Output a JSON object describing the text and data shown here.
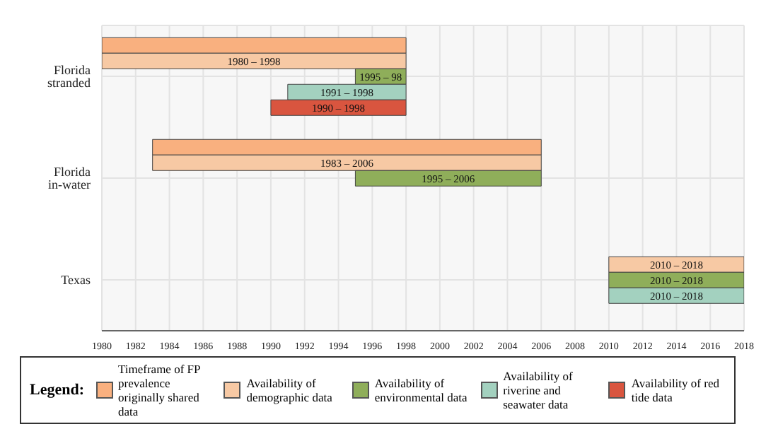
{
  "chart_data": {
    "type": "bar",
    "orientation": "horizontal",
    "categories": [
      "Florida stranded",
      "Florida in-water",
      "Texas"
    ],
    "xlim": [
      1980,
      2018
    ],
    "xticks": [
      1980,
      1982,
      1984,
      1986,
      1988,
      1990,
      1992,
      1994,
      1996,
      1998,
      2000,
      2002,
      2004,
      2006,
      2008,
      2010,
      2012,
      2014,
      2016,
      2018
    ],
    "grid": true,
    "legend": "bottom",
    "legend_title": "Legend:",
    "series": [
      {
        "name": "Timeframe of FP prevalence originally shared data",
        "color": "#f9b07f",
        "base": [
          1980,
          1983,
          null
        ],
        "values": [
          18,
          23,
          null
        ]
      },
      {
        "name": "Availability of demographic data",
        "color": "#f7c9a4",
        "base": [
          1980,
          1983,
          2010
        ],
        "values": [
          18,
          23,
          8
        ]
      },
      {
        "name": "Availability of environmental data",
        "color": "#8fae5a",
        "base": [
          1995,
          1995,
          2010
        ],
        "values": [
          3,
          11,
          8
        ]
      },
      {
        "name": "Availability of riverine and seawater data",
        "color": "#a3d1bf",
        "base": [
          1991,
          null,
          2010
        ],
        "values": [
          7,
          null,
          8
        ]
      },
      {
        "name": "Availability of red tide data",
        "color": "#d9553f",
        "base": [
          1990,
          null,
          null
        ],
        "values": [
          8,
          null,
          null
        ]
      }
    ],
    "annotations": [
      "1980 – 1998",
      "1995 – 98",
      "1991 – 1998",
      "1990 – 1998",
      "1983 – 2006",
      "1995 – 2006",
      "2010 – 2018",
      "2010 – 2018",
      "2010 – 2018"
    ]
  }
}
